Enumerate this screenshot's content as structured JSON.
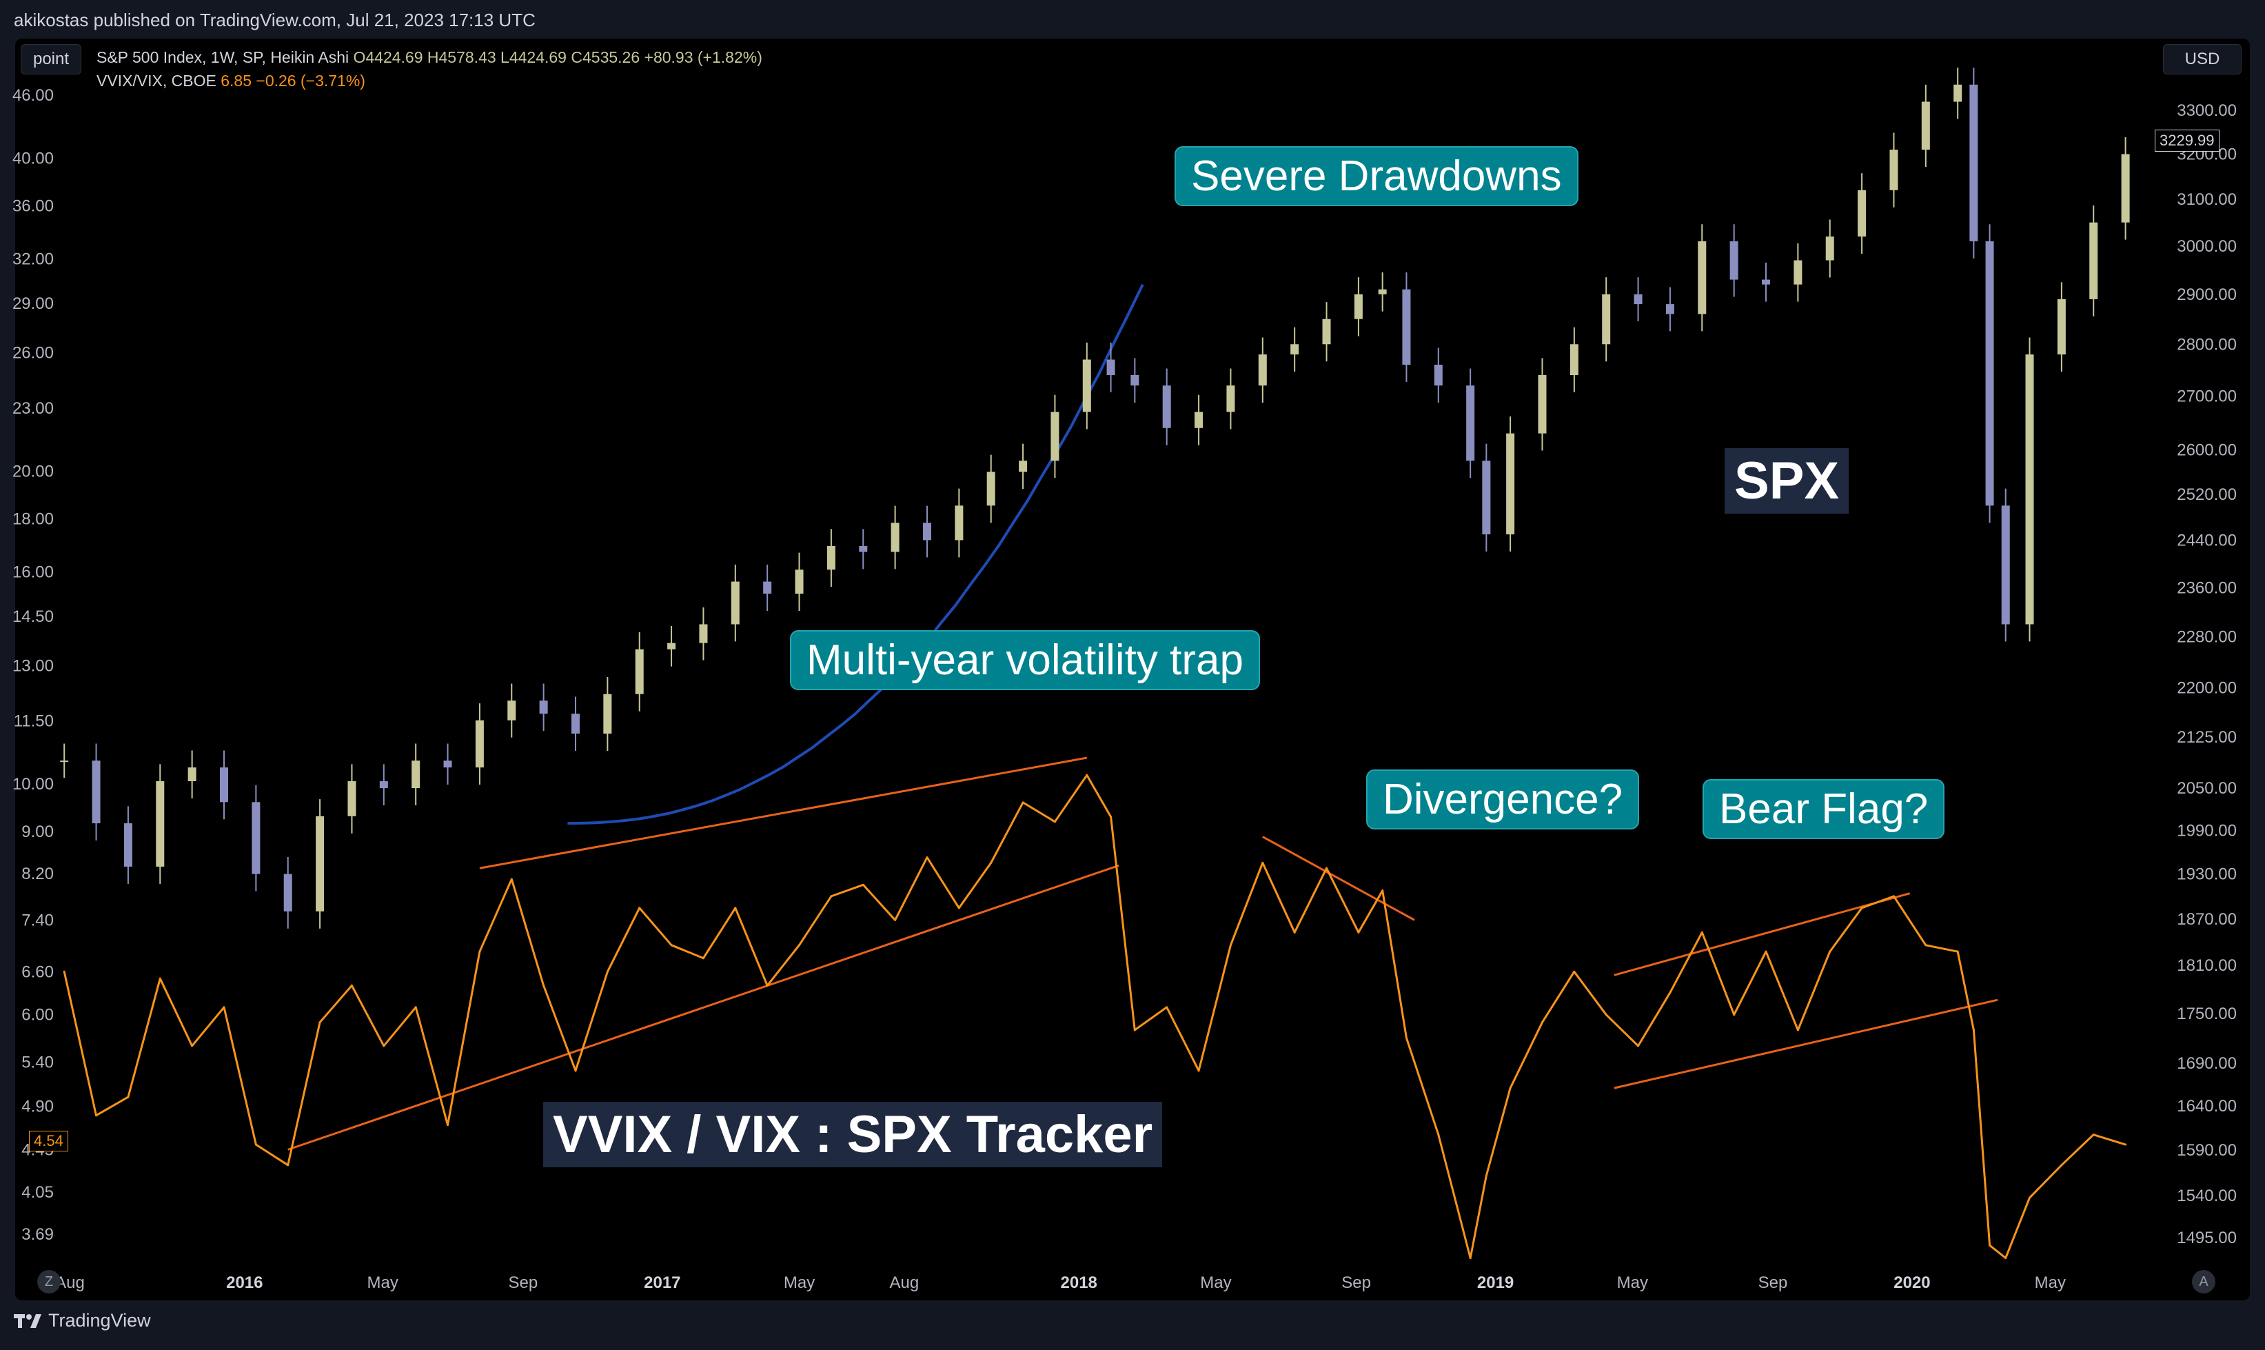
{
  "header": {
    "published_line": "akikostas published on TradingView.com, Jul 21, 2023 17:13 UTC"
  },
  "toolbar": {
    "point_label": "point",
    "currency_label": "USD",
    "bottom_left_button": "Z",
    "bottom_right_button": "A"
  },
  "legend": {
    "spx_name": "S&P 500 Index, 1W, SP, Heikin Ashi",
    "spx_open": "O4424.69",
    "spx_high": "H4578.43",
    "spx_low": "L4424.69",
    "spx_close": "C4535.26",
    "spx_change": "+80.93 (+1.82%)",
    "vvix_name": "VVIX/VIX, CBOE",
    "vvix_value": "6.85",
    "vvix_change": "−0.26 (−3.71%)"
  },
  "labels": {
    "severe_drawdowns": "Severe Drawdowns",
    "volatility_trap": "Multi-year volatility trap",
    "divergence": "Divergence?",
    "bear_flag": "Bear Flag?",
    "spx": "SPX",
    "tracker": "VVIX / VIX : SPX Tracker"
  },
  "footer": {
    "brand": "TradingView"
  },
  "colors": {
    "candle_up": "#c8c79a",
    "candle_down": "#8a8fc0",
    "vvix_line": "#f7931a",
    "trend_lines": "#e8621a",
    "curve": "#1f4bb5",
    "bubble": "#00838f"
  },
  "chart_data": [
    {
      "type": "candlestick",
      "name": "S&P 500 Index, 1W, SP, Heikin Ashi",
      "scale": "log",
      "axis": "right",
      "y_ticks": [
        3300.0,
        3200.0,
        3100.0,
        3000.0,
        2900.0,
        2800.0,
        2700.0,
        2600.0,
        2520.0,
        2440.0,
        2360.0,
        2280.0,
        2200.0,
        2125.0,
        2050.0,
        1990.0,
        1930.0,
        1870.0,
        1810.0,
        1750.0,
        1690.0,
        1640.0,
        1590.0,
        1540.0,
        1495.0
      ],
      "current_price": "3229.99",
      "x": [
        "2015-07-27",
        "2015-08-24",
        "2015-09-21",
        "2015-10-19",
        "2015-11-16",
        "2015-12-14",
        "2016-01-11",
        "2016-02-08",
        "2016-03-07",
        "2016-04-04",
        "2016-05-02",
        "2016-05-30",
        "2016-06-27",
        "2016-07-25",
        "2016-08-22",
        "2016-09-19",
        "2016-10-17",
        "2016-11-14",
        "2016-12-12",
        "2017-01-09",
        "2017-02-06",
        "2017-03-06",
        "2017-04-03",
        "2017-05-01",
        "2017-05-29",
        "2017-06-26",
        "2017-07-24",
        "2017-08-21",
        "2017-09-18",
        "2017-10-16",
        "2017-11-13",
        "2017-12-11",
        "2018-01-08",
        "2018-01-29",
        "2018-02-19",
        "2018-03-19",
        "2018-04-16",
        "2018-05-14",
        "2018-06-11",
        "2018-07-09",
        "2018-08-06",
        "2018-09-03",
        "2018-09-24",
        "2018-10-15",
        "2018-11-12",
        "2018-12-10",
        "2018-12-24",
        "2019-01-14",
        "2019-02-11",
        "2019-03-11",
        "2019-04-08",
        "2019-05-06",
        "2019-06-03",
        "2019-07-01",
        "2019-07-29",
        "2019-08-26",
        "2019-09-23",
        "2019-10-21",
        "2019-11-18",
        "2019-12-16",
        "2020-01-13",
        "2020-02-10",
        "2020-02-24",
        "2020-03-09",
        "2020-03-23",
        "2020-04-13",
        "2020-05-11",
        "2020-06-08",
        "2020-07-06"
      ],
      "close": [
        2090,
        2000,
        1940,
        2060,
        2080,
        2030,
        1930,
        1880,
        2010,
        2060,
        2050,
        2090,
        2080,
        2150,
        2180,
        2160,
        2130,
        2190,
        2260,
        2270,
        2300,
        2370,
        2350,
        2390,
        2430,
        2420,
        2470,
        2440,
        2500,
        2560,
        2580,
        2670,
        2770,
        2740,
        2720,
        2640,
        2670,
        2720,
        2780,
        2800,
        2850,
        2900,
        2910,
        2760,
        2720,
        2580,
        2450,
        2630,
        2740,
        2800,
        2900,
        2880,
        2860,
        3010,
        2930,
        2920,
        2970,
        3020,
        3120,
        3210,
        3320,
        3360,
        3010,
        2500,
        2300,
        2780,
        2890,
        3050,
        3200
      ]
    },
    {
      "type": "line",
      "name": "VVIX/VIX, CBOE",
      "scale": "log",
      "axis": "left",
      "y_ticks": [
        46.0,
        40.0,
        36.0,
        32.0,
        29.0,
        26.0,
        23.0,
        20.0,
        18.0,
        16.0,
        14.5,
        13.0,
        11.5,
        10.0,
        9.0,
        8.2,
        7.4,
        6.6,
        6.0,
        5.4,
        4.9,
        4.45,
        4.05,
        3.69
      ],
      "current_value": "4.54",
      "x_tick_labels": [
        "Aug",
        "2016",
        "May",
        "Sep",
        "2017",
        "May",
        "Aug",
        "2018",
        "May",
        "Sep",
        "2019",
        "May",
        "Sep",
        "2020",
        "May"
      ],
      "x": [
        "2015-07-27",
        "2015-08-24",
        "2015-09-21",
        "2015-10-19",
        "2015-11-16",
        "2015-12-14",
        "2016-01-11",
        "2016-02-08",
        "2016-03-07",
        "2016-04-04",
        "2016-05-02",
        "2016-05-30",
        "2016-06-27",
        "2016-07-25",
        "2016-08-22",
        "2016-09-19",
        "2016-10-17",
        "2016-11-14",
        "2016-12-12",
        "2017-01-09",
        "2017-02-06",
        "2017-03-06",
        "2017-04-03",
        "2017-05-01",
        "2017-05-29",
        "2017-06-26",
        "2017-07-24",
        "2017-08-21",
        "2017-09-18",
        "2017-10-16",
        "2017-11-13",
        "2017-12-11",
        "2018-01-08",
        "2018-01-29",
        "2018-02-19",
        "2018-03-19",
        "2018-04-16",
        "2018-05-14",
        "2018-06-11",
        "2018-07-09",
        "2018-08-06",
        "2018-09-03",
        "2018-09-24",
        "2018-10-15",
        "2018-11-12",
        "2018-12-10",
        "2018-12-24",
        "2019-01-14",
        "2019-02-11",
        "2019-03-11",
        "2019-04-08",
        "2019-05-06",
        "2019-06-03",
        "2019-07-01",
        "2019-07-29",
        "2019-08-26",
        "2019-09-23",
        "2019-10-21",
        "2019-11-18",
        "2019-12-16",
        "2020-01-13",
        "2020-02-10",
        "2020-02-24",
        "2020-03-09",
        "2020-03-23",
        "2020-04-13",
        "2020-05-11",
        "2020-06-08",
        "2020-07-06"
      ],
      "values": [
        6.6,
        4.8,
        5.0,
        6.5,
        5.6,
        6.1,
        4.5,
        4.3,
        5.9,
        6.4,
        5.6,
        6.1,
        4.7,
        6.9,
        8.1,
        6.4,
        5.3,
        6.6,
        7.6,
        7.0,
        6.8,
        7.6,
        6.4,
        7.0,
        7.8,
        8.0,
        7.4,
        8.5,
        7.6,
        8.4,
        9.6,
        9.2,
        10.2,
        9.3,
        5.8,
        6.1,
        5.3,
        7.0,
        8.4,
        7.2,
        8.3,
        7.2,
        7.9,
        5.7,
        4.6,
        3.5,
        4.2,
        5.1,
        5.9,
        6.6,
        6.0,
        5.6,
        6.3,
        7.2,
        6.0,
        6.9,
        5.8,
        6.9,
        7.6,
        7.8,
        7.0,
        6.9,
        5.8,
        3.6,
        3.5,
        4.0,
        4.3,
        4.6,
        4.5
      ],
      "annotations": [
        "Multi-year volatility trap",
        "Divergence?",
        "Bear Flag?",
        "Severe Drawdowns"
      ]
    }
  ]
}
